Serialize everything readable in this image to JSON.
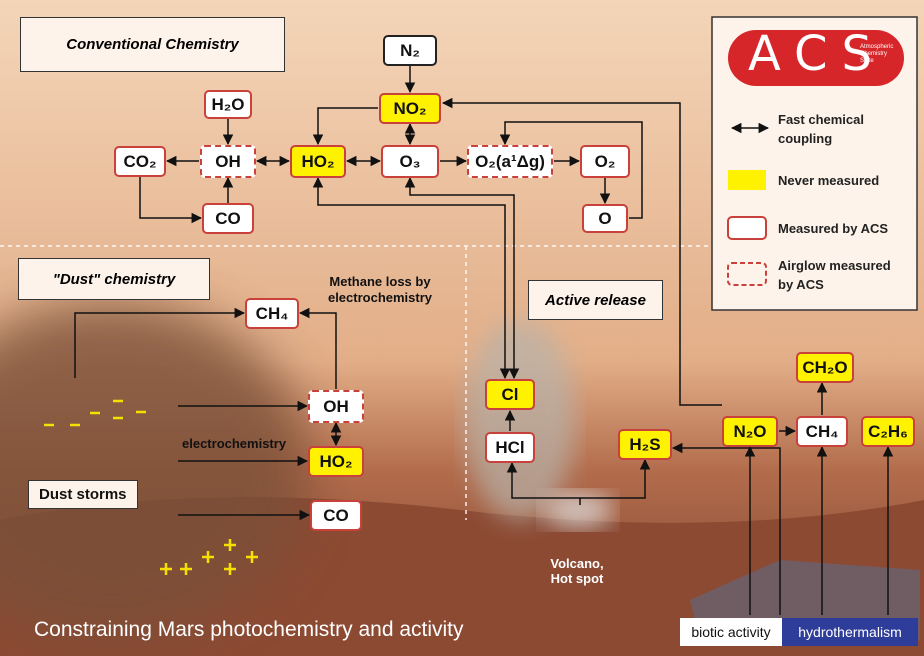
{
  "sections": [
    "Conventional Chemistry",
    "\"Dust\" chemistry",
    "Active release"
  ],
  "nodes": [
    {
      "label": "N₂"
    },
    {
      "label": "NO₂"
    },
    {
      "label": "H₂O"
    },
    {
      "label": "CO₂"
    },
    {
      "label": "OH"
    },
    {
      "label": "HO₂"
    },
    {
      "label": "O₃"
    },
    {
      "label": "O₂(a¹Δg)"
    },
    {
      "label": "O₂"
    },
    {
      "label": "CO"
    },
    {
      "label": "O"
    },
    {
      "label": "CH₄"
    },
    {
      "label": "OH"
    },
    {
      "label": "HO₂"
    },
    {
      "label": "CO"
    },
    {
      "label": "Cl"
    },
    {
      "label": "HCl"
    },
    {
      "label": "H₂S"
    },
    {
      "label": "N₂O"
    },
    {
      "label": "CH₂O"
    },
    {
      "label": "CH₄"
    },
    {
      "label": "C₂H₆"
    }
  ],
  "annotations": {
    "methane_loss": "Methane loss by electrochemistry",
    "electrochemistry": "electrochemistry",
    "dust_storms": "Dust storms",
    "volcano": "Volcano, Hot spot"
  },
  "legend": {
    "logo": "ACS",
    "logo_subtitle": "Atmospheric Chemistry Suite",
    "items": [
      "Fast chemical coupling",
      "Never measured",
      "Measured by ACS",
      "Airglow measured by ACS"
    ]
  },
  "caption": "Constraining Mars photochemistry and activity",
  "tags": [
    "biotic activity",
    "hydrothermalism"
  ]
}
